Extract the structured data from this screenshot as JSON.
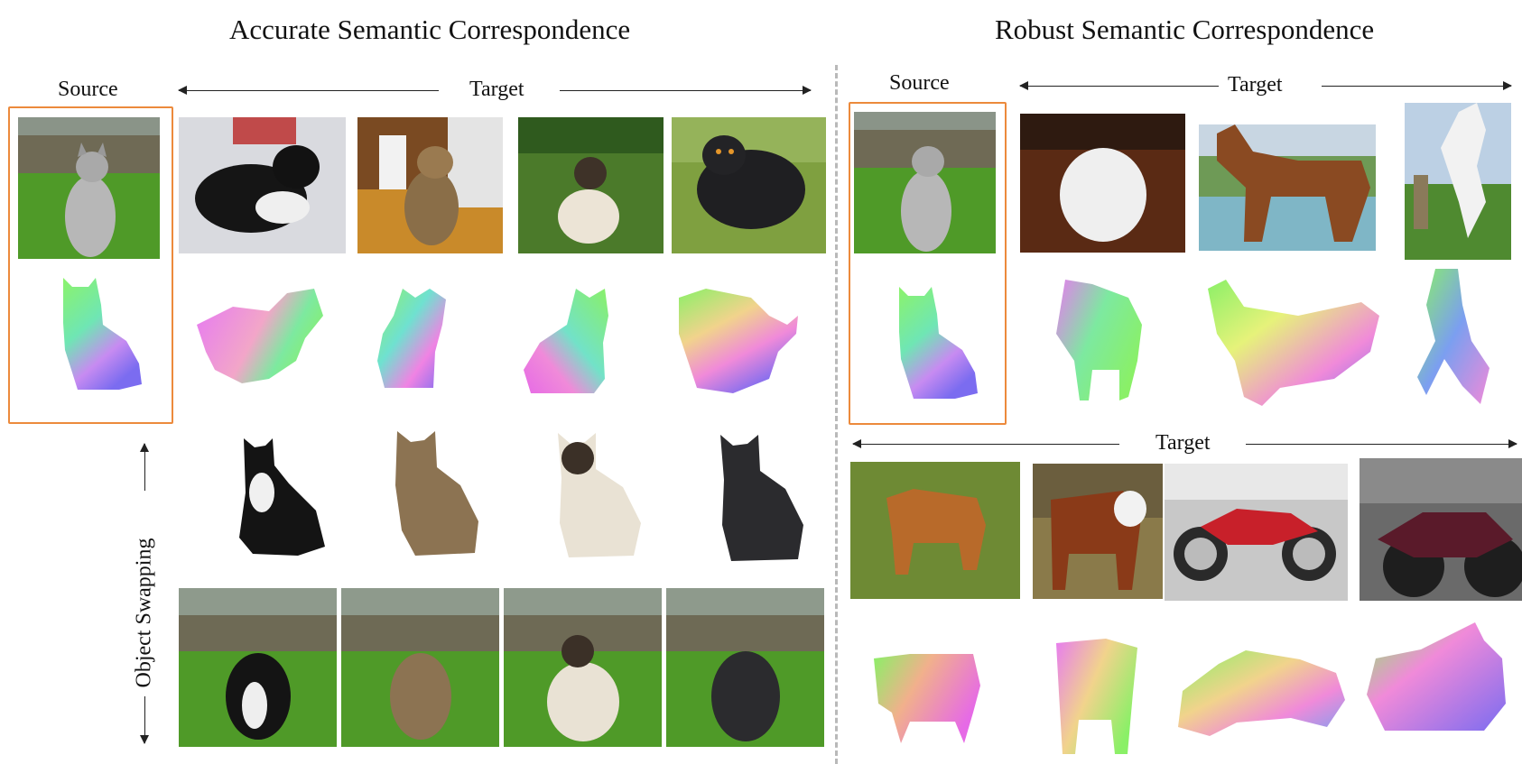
{
  "left_panel": {
    "title": "Accurate Semantic Correspondence",
    "source_label": "Source",
    "target_label": "Target",
    "side_label": "Object Swapping"
  },
  "right_panel": {
    "title": "Robust Semantic Correspondence",
    "source_label": "Source",
    "target_label_top": "Target",
    "target_label_bottom": "Target"
  },
  "colors": {
    "source_box": "#ec8a3c",
    "divider": "#b9b9b9",
    "grass": "#5aa02c",
    "sky": "#8aa0b0"
  },
  "images": {
    "left_targets": [
      "black-white-cat-photo",
      "tabby-cat-photo",
      "siamese-cat-photo",
      "black-persian-cat-photo"
    ],
    "right_top_targets": [
      "white-dog-photo",
      "brown-horse-photo",
      "white-horse-rearing-photo"
    ],
    "right_bottom_targets": [
      "brown-cow-photo",
      "hereford-calf-photo",
      "red-motorcycle-photo",
      "maroon-motorcycle-photo"
    ]
  }
}
